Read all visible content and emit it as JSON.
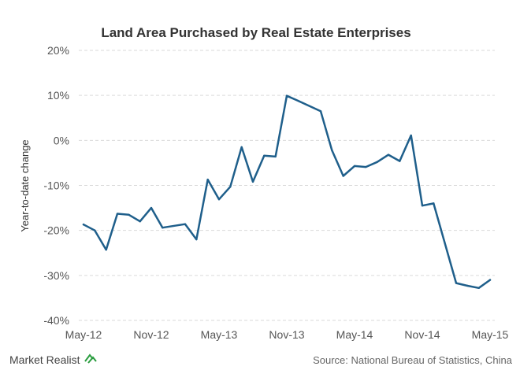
{
  "chart_data": {
    "type": "line",
    "title": "Land Area Purchased  by Real Estate Enterprises",
    "ylabel": "Year-to-date change",
    "xlabel": "",
    "ylim": [
      -40,
      20
    ],
    "y_ticks": [
      20,
      10,
      0,
      -10,
      -20,
      -30,
      -40
    ],
    "y_tick_labels": [
      "20%",
      "10%",
      "0%",
      "-10%",
      "-20%",
      "-30%",
      "-40%"
    ],
    "x_tick_labels": [
      "May-12",
      "Nov-12",
      "May-13",
      "Nov-13",
      "May-14",
      "Nov-14",
      "May-15"
    ],
    "grid": true,
    "series": [
      {
        "color": "#1f5f8b",
        "x": [
          "2012-05",
          "2012-06",
          "2012-07",
          "2012-08",
          "2012-09",
          "2012-10",
          "2012-11",
          "2012-12",
          "2013-02",
          "2013-03",
          "2013-04",
          "2013-05",
          "2013-06",
          "2013-07",
          "2013-08",
          "2013-09",
          "2013-10",
          "2013-11",
          "2013-12",
          "2014-02",
          "2014-03",
          "2014-04",
          "2014-05",
          "2014-06",
          "2014-07",
          "2014-08",
          "2014-09",
          "2014-10",
          "2014-11",
          "2014-12",
          "2015-02",
          "2015-03",
          "2015-04",
          "2015-05"
        ],
        "values": [
          -18.7,
          -20.0,
          -24.3,
          -16.3,
          -16.5,
          -18.0,
          -15.0,
          -19.4,
          -18.6,
          -22.0,
          -8.7,
          -13.1,
          -10.3,
          -1.5,
          -9.2,
          -3.4,
          -3.6,
          9.9,
          8.8,
          6.5,
          -2.2,
          -7.9,
          -5.7,
          -5.9,
          -4.8,
          -3.2,
          -4.6,
          1.1,
          -14.5,
          -14.0,
          -31.7,
          -32.3,
          -32.8,
          -31.0
        ]
      }
    ]
  },
  "footer": {
    "brand": "Market Realist",
    "source": "Source: National Bureau of Statistics, China"
  },
  "colors": {
    "brand_logo": "#2a9d3f",
    "series": "#1f5f8b"
  }
}
